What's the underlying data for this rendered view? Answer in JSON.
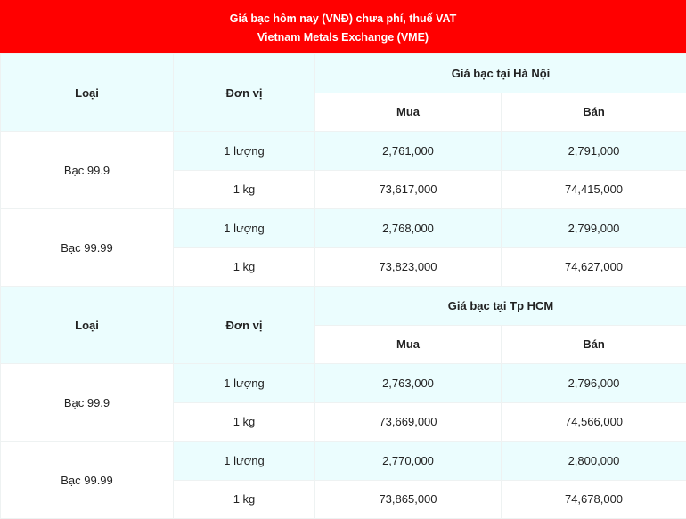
{
  "title": {
    "line1": "Giá bạc hôm nay (VNĐ) chưa phí, thuế VAT",
    "line2": "Vietnam Metals Exchange (VME)"
  },
  "colors": {
    "header_bg": "#ff0000",
    "cell_highlight": "#ebfdfe"
  },
  "sections": [
    {
      "headers": {
        "type": "Loại",
        "unit": "Đơn vị",
        "location": "Giá bạc tại Hà Nội",
        "buy": "Mua",
        "sell": "Bán"
      },
      "rows": [
        {
          "type": "Bạc 99.9",
          "items": [
            {
              "unit": "1 lượng",
              "buy": "2,761,000",
              "sell": "2,791,000"
            },
            {
              "unit": "1 kg",
              "buy": "73,617,000",
              "sell": "74,415,000"
            }
          ]
        },
        {
          "type": "Bạc 99.99",
          "items": [
            {
              "unit": "1 lượng",
              "buy": "2,768,000",
              "sell": "2,799,000"
            },
            {
              "unit": "1 kg",
              "buy": "73,823,000",
              "sell": "74,627,000"
            }
          ]
        }
      ]
    },
    {
      "headers": {
        "type": "Loại",
        "unit": "Đơn vị",
        "location": "Giá bạc tại Tp HCM",
        "buy": "Mua",
        "sell": "Bán"
      },
      "rows": [
        {
          "type": "Bạc 99.9",
          "items": [
            {
              "unit": "1 lượng",
              "buy": "2,763,000",
              "sell": "2,796,000"
            },
            {
              "unit": "1 kg",
              "buy": "73,669,000",
              "sell": "74,566,000"
            }
          ]
        },
        {
          "type": "Bạc 99.99",
          "items": [
            {
              "unit": "1 lượng",
              "buy": "2,770,000",
              "sell": "2,800,000"
            },
            {
              "unit": "1 kg",
              "buy": "73,865,000",
              "sell": "74,678,000"
            }
          ]
        }
      ]
    }
  ]
}
